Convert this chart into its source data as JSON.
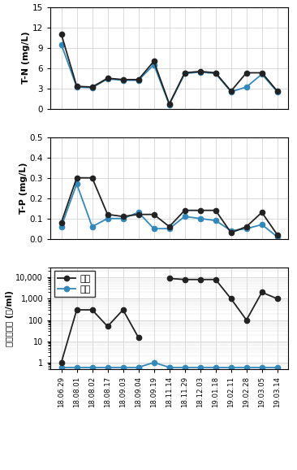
{
  "x_labels": [
    "18.06.29",
    "18.08.01",
    "18.08.02",
    "18.08.17",
    "18.09.03",
    "18.09.04",
    "18.09.19",
    "18.11.14",
    "18.11.29",
    "18.12.03",
    "19.01.18",
    "19.02.11",
    "19.02.28",
    "19.03.05",
    "19.03.14"
  ],
  "tn_raw": [
    11.0,
    3.3,
    3.2,
    4.5,
    4.3,
    4.3,
    7.0,
    0.7,
    5.3,
    5.5,
    5.3,
    2.6,
    5.3,
    5.3,
    2.6
  ],
  "tn_ozone": [
    9.5,
    3.2,
    3.1,
    4.4,
    4.2,
    4.2,
    6.5,
    0.6,
    5.2,
    5.4,
    5.2,
    2.5,
    3.2,
    5.1,
    2.5
  ],
  "tp_raw": [
    0.08,
    0.3,
    0.3,
    0.12,
    0.11,
    0.12,
    0.12,
    0.06,
    0.14,
    0.14,
    0.14,
    0.03,
    0.06,
    0.13,
    0.02
  ],
  "tp_ozone": [
    0.06,
    0.27,
    0.06,
    0.1,
    0.1,
    0.13,
    0.05,
    0.05,
    0.11,
    0.1,
    0.09,
    0.04,
    0.05,
    0.07,
    0.01
  ],
  "tc_raw": [
    1,
    300,
    300,
    50,
    300,
    15,
    null,
    9000,
    8000,
    8000,
    8000,
    1000,
    100,
    2000,
    1000
  ],
  "tc_ozone_vals": [
    null,
    null,
    null,
    null,
    null,
    null,
    1,
    null,
    null,
    null,
    null,
    null,
    null,
    null,
    null
  ],
  "color_raw": "#222222",
  "color_ozone": "#3388bb",
  "ylabel_tn": "T-N (mg/L)",
  "ylabel_tp": "T-P (mg/L)",
  "ylabel_tc": "토대장균군 (수/ml)",
  "ylim_tn": [
    0,
    15
  ],
  "ylim_tp": [
    0.0,
    0.5
  ],
  "yticks_tn": [
    0,
    3,
    6,
    9,
    12,
    15
  ],
  "yticks_tp": [
    0.0,
    0.1,
    0.2,
    0.3,
    0.4,
    0.5
  ],
  "yticks_tc": [
    1,
    10,
    100,
    1000,
    10000
  ],
  "ylim_tc": [
    0.5,
    30000
  ],
  "legend_raw": "원수",
  "legend_ozone": "오존",
  "markersize": 4.5,
  "linewidth": 1.3
}
